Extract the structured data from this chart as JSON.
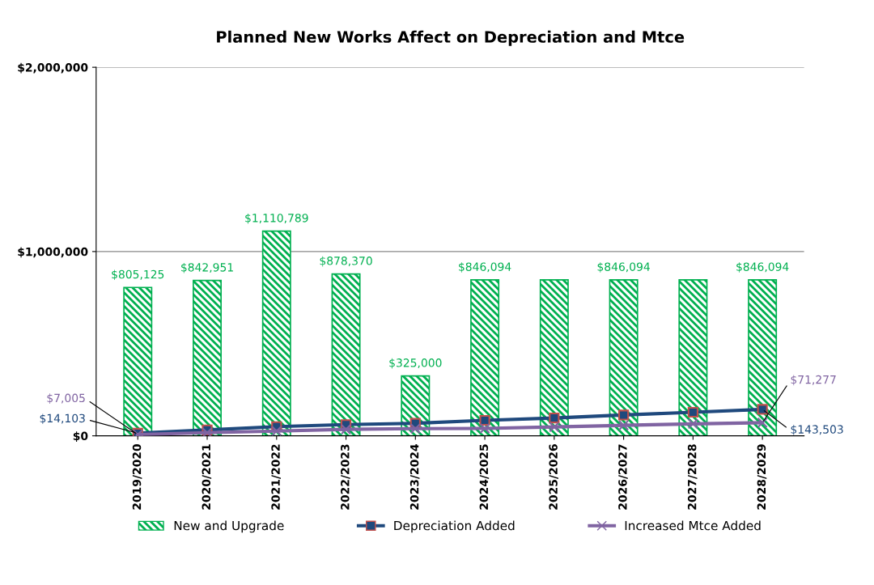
{
  "chart_data": {
    "type": "bar",
    "title": "Planned New Works Affect on Depreciation and Mtce",
    "categories": [
      "2019/2020",
      "2020/2021",
      "2021/2022",
      "2022/2023",
      "2023/2024",
      "2024/2025",
      "2025/2026",
      "2026/2027",
      "2027/2028",
      "2028/2029"
    ],
    "series": [
      {
        "name": "New and Upgrade",
        "color": "#00b050",
        "values": [
          805125,
          842951,
          1110789,
          878370,
          325000,
          846094,
          846094,
          846094,
          846094,
          846094
        ],
        "value_labels": [
          "$805,125",
          "$842,951",
          "$1,110,789",
          "$878,370",
          "$325,000",
          "$846,094",
          null,
          "$846,094",
          null,
          "$846,094"
        ]
      },
      {
        "name": "Depreciation Added",
        "type": "line",
        "color": "#1f497d",
        "marker": "square",
        "values": [
          14103,
          32000,
          50000,
          61000,
          68000,
          84000,
          97000,
          113000,
          128000,
          143503
        ],
        "value_labels": [
          "$14,103",
          null,
          null,
          null,
          null,
          null,
          null,
          null,
          null,
          "$143,503"
        ]
      },
      {
        "name": "Increased Mtce Added",
        "type": "line",
        "color": "#8064a2",
        "marker": "cross",
        "values": [
          7005,
          17000,
          26000,
          35000,
          39000,
          40000,
          48000,
          57000,
          65000,
          71277
        ],
        "value_labels": [
          "$7,005",
          null,
          null,
          null,
          null,
          null,
          null,
          null,
          null,
          "$71,277"
        ]
      }
    ],
    "ylim": [
      0,
      2000000
    ],
    "yticks": [
      {
        "value": 0,
        "label": "$0"
      },
      {
        "value": 1000000,
        "label": "$1,000,000"
      },
      {
        "value": 2000000,
        "label": "$2,000,000"
      }
    ],
    "grid": "y",
    "legend": "bottom"
  }
}
